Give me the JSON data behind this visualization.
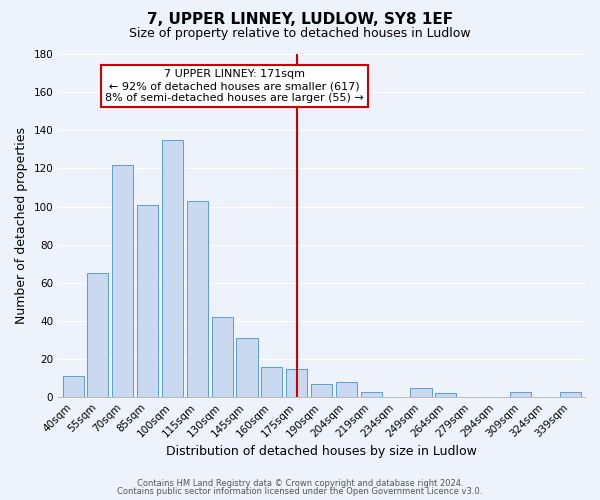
{
  "title": "7, UPPER LINNEY, LUDLOW, SY8 1EF",
  "subtitle": "Size of property relative to detached houses in Ludlow",
  "xlabel": "Distribution of detached houses by size in Ludlow",
  "ylabel": "Number of detached properties",
  "bar_labels": [
    "40sqm",
    "55sqm",
    "70sqm",
    "85sqm",
    "100sqm",
    "115sqm",
    "130sqm",
    "145sqm",
    "160sqm",
    "175sqm",
    "190sqm",
    "204sqm",
    "219sqm",
    "234sqm",
    "249sqm",
    "264sqm",
    "279sqm",
    "294sqm",
    "309sqm",
    "324sqm",
    "339sqm"
  ],
  "bar_values": [
    11,
    65,
    122,
    101,
    135,
    103,
    42,
    31,
    16,
    15,
    7,
    8,
    3,
    0,
    5,
    2,
    0,
    0,
    3,
    0,
    3
  ],
  "bar_color": "#c8d9f0",
  "bar_edge_color": "#5b9bd5",
  "vline_color": "#cc0000",
  "ylim": [
    0,
    180
  ],
  "yticks": [
    0,
    20,
    40,
    60,
    80,
    100,
    120,
    140,
    160,
    180
  ],
  "annotation_title": "7 UPPER LINNEY: 171sqm",
  "annotation_line1": "← 92% of detached houses are smaller (617)",
  "annotation_line2": "8% of semi-detached houses are larger (55) →",
  "footer1": "Contains HM Land Registry data © Crown copyright and database right 2024.",
  "footer2": "Contains public sector information licensed under the Open Government Licence v3.0.",
  "background_color": "#eef2fb",
  "grid_color": "#ffffff",
  "title_fontsize": 11,
  "subtitle_fontsize": 9,
  "tick_fontsize": 7.5,
  "ylabel_fontsize": 9,
  "xlabel_fontsize": 9,
  "footer_fontsize": 6,
  "annotation_fontsize": 8
}
